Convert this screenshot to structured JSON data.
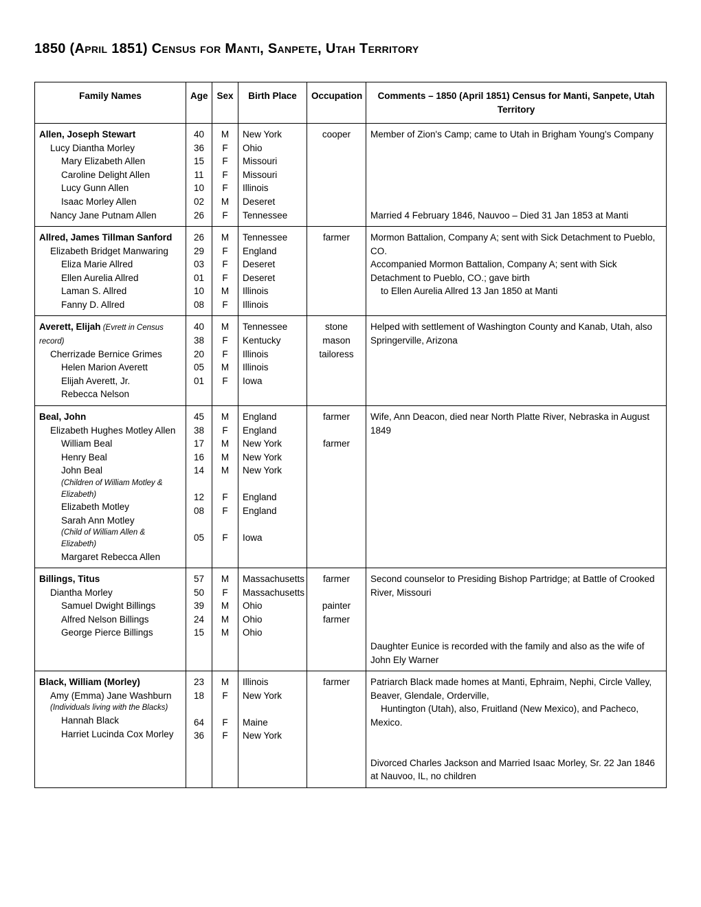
{
  "title": "1850 (April 1851) Census for Manti, Sanpete, Utah Territory",
  "columns": {
    "names": "Family Names",
    "age": "Age",
    "sex": "Sex",
    "birth": "Birth Place",
    "occ": "Occupation",
    "comm": "Comments – 1850 (April 1851) Census for Manti, Sanpete, Utah Territory"
  },
  "families": [
    {
      "members": [
        {
          "name": "Allen, Joseph Stewart",
          "age": "40",
          "sex": "M",
          "birth": "New York",
          "occ": "cooper",
          "indent": 0,
          "bold": true
        },
        {
          "name": "Lucy Diantha Morley",
          "age": "36",
          "sex": "F",
          "birth": "Ohio",
          "occ": "",
          "indent": 1
        },
        {
          "name": "Mary Elizabeth Allen",
          "age": "15",
          "sex": "F",
          "birth": "Missouri",
          "occ": "",
          "indent": 2
        },
        {
          "name": "Caroline Delight Allen",
          "age": "11",
          "sex": "F",
          "birth": "Missouri",
          "occ": "",
          "indent": 2
        },
        {
          "name": "Lucy Gunn Allen",
          "age": "10",
          "sex": "F",
          "birth": "Illinois",
          "occ": "",
          "indent": 2
        },
        {
          "name": "Isaac Morley Allen",
          "age": "02",
          "sex": "M",
          "birth": "Deseret",
          "occ": "",
          "indent": 2
        },
        {
          "name": "Nancy Jane Putnam Allen",
          "age": "26",
          "sex": "F",
          "birth": "Tennessee",
          "occ": "",
          "indent": 1
        }
      ],
      "comment_top": "Member of Zion's Camp; came to Utah in Brigham Young's Company",
      "comment_bottom": "Married 4 February 1846, Nauvoo – Died 31 Jan 1853 at Manti"
    },
    {
      "members": [
        {
          "name": "Allred, James Tillman Sanford",
          "age": "26",
          "sex": "M",
          "birth": "Tennessee",
          "occ": "farmer",
          "indent": 0,
          "bold": true
        },
        {
          "name": "Elizabeth Bridget Manwaring",
          "age": "29",
          "sex": "F",
          "birth": "England",
          "occ": "",
          "indent": 1
        },
        {
          "name": "Eliza Marie Allred",
          "age": "03",
          "sex": "F",
          "birth": "Deseret",
          "occ": "",
          "indent": 2
        },
        {
          "name": "Ellen Aurelia Allred",
          "age": "01",
          "sex": "F",
          "birth": "Deseret",
          "occ": "",
          "indent": 2
        },
        {
          "name": "Laman S. Allred",
          "age": "10",
          "sex": "M",
          "birth": "Illinois",
          "occ": "",
          "indent": 2
        },
        {
          "name": "Fanny D. Allred",
          "age": "08",
          "sex": "F",
          "birth": "Illinois",
          "occ": "",
          "indent": 2
        }
      ],
      "comment_lines": [
        "Mormon Battalion, Company A; sent with Sick Detachment to Pueblo, CO.",
        "Accompanied Mormon Battalion, Company A; sent with Sick Detachment to Pueblo, CO.; gave birth",
        "    to Ellen Aurelia Allred 13 Jan 1850 at Manti"
      ]
    },
    {
      "members": [
        {
          "name": "Averett, Elijah",
          "note": "(Evrett in Census record)",
          "age": "40",
          "sex": "M",
          "birth": "Tennessee",
          "occ": "stone mason",
          "indent": 0,
          "bold": true
        },
        {
          "name": "Cherrizade Bernice Grimes",
          "age": "38",
          "sex": "F",
          "birth": "Kentucky",
          "occ": "tailoress",
          "indent": 1
        },
        {
          "name": "Helen Marion Averett",
          "age": "20",
          "sex": "F",
          "birth": "Illinois",
          "occ": "",
          "indent": 2
        },
        {
          "name": "Elijah Averett, Jr.",
          "age": "05",
          "sex": "M",
          "birth": "Illinois",
          "occ": "",
          "indent": 2
        },
        {
          "name": "Rebecca Nelson",
          "age": "01",
          "sex": "F",
          "birth": "Iowa",
          "occ": "",
          "indent": 2
        }
      ],
      "comment_top": "Helped with settlement of Washington County and Kanab, Utah, also Springerville, Arizona"
    },
    {
      "members": [
        {
          "name": "Beal, John",
          "age": "45",
          "sex": "M",
          "birth": "England",
          "occ": "farmer",
          "indent": 0,
          "bold": true
        },
        {
          "name": "Elizabeth Hughes Motley Allen",
          "age": "38",
          "sex": "F",
          "birth": "England",
          "occ": "",
          "indent": 1
        },
        {
          "name": "William Beal",
          "age": "17",
          "sex": "M",
          "birth": "New York",
          "occ": "farmer",
          "indent": 2
        },
        {
          "name": "Henry Beal",
          "age": "16",
          "sex": "M",
          "birth": "New York",
          "occ": "",
          "indent": 2
        },
        {
          "name": "John Beal",
          "age": "14",
          "sex": "M",
          "birth": "New York",
          "occ": "",
          "indent": 2
        },
        {
          "name": "(Children of William Motley & Elizabeth)",
          "age": "",
          "sex": "",
          "birth": "",
          "occ": "",
          "indent": 2,
          "italic": true,
          "small": true
        },
        {
          "name": "Elizabeth Motley",
          "age": "12",
          "sex": "F",
          "birth": "England",
          "occ": "",
          "indent": 2
        },
        {
          "name": "Sarah Ann Motley",
          "age": "08",
          "sex": "F",
          "birth": "England",
          "occ": "",
          "indent": 2
        },
        {
          "name": "(Child of William Allen & Elizabeth)",
          "age": "",
          "sex": "",
          "birth": "",
          "occ": "",
          "indent": 2,
          "italic": true,
          "small": true
        },
        {
          "name": "Margaret Rebecca Allen",
          "age": "05",
          "sex": "F",
          "birth": "Iowa",
          "occ": "",
          "indent": 2
        }
      ],
      "comment_top": "Wife, Ann Deacon, died near North Platte River, Nebraska in August 1849"
    },
    {
      "members": [
        {
          "name": "Billings, Titus",
          "age": "57",
          "sex": "M",
          "birth": "Massachusetts",
          "occ": "farmer",
          "indent": 0,
          "bold": true
        },
        {
          "name": "Diantha Morley",
          "age": "50",
          "sex": "F",
          "birth": "Massachusetts",
          "occ": "",
          "indent": 1
        },
        {
          "name": "Samuel Dwight Billings",
          "age": "39",
          "sex": "M",
          "birth": "Ohio",
          "occ": "painter",
          "indent": 2
        },
        {
          "name": "Alfred Nelson Billings",
          "age": "24",
          "sex": "M",
          "birth": "Ohio",
          "occ": "farmer",
          "indent": 2
        },
        {
          "name": "George Pierce Billings",
          "age": "15",
          "sex": "M",
          "birth": "Ohio",
          "occ": "",
          "indent": 2
        }
      ],
      "comment_top": "Second counselor to Presiding Bishop Partridge; at Battle of Crooked River, Missouri",
      "comment_bottom": "Daughter Eunice is recorded with the family and also as the wife of John Ely Warner"
    },
    {
      "members": [
        {
          "name": "Black, William (Morley)",
          "age": "23",
          "sex": "M",
          "birth": "Illinois",
          "occ": "farmer",
          "indent": 0,
          "bold": true
        },
        {
          "name": "Amy (Emma) Jane Washburn",
          "age": "18",
          "sex": "F",
          "birth": "New York",
          "occ": "",
          "indent": 1
        },
        {
          "name": "(Individuals living with the Blacks)",
          "age": "",
          "sex": "",
          "birth": "",
          "occ": "",
          "indent": 1,
          "italic": true,
          "small": true
        },
        {
          "name": "Hannah Black",
          "age": "64",
          "sex": "F",
          "birth": "Maine",
          "occ": "",
          "indent": 2
        },
        {
          "name": "Harriet Lucinda Cox Morley",
          "age": "36",
          "sex": "F",
          "birth": "New York",
          "occ": "",
          "indent": 2
        }
      ],
      "comment_lines_top": [
        "Patriarch Black made homes at Manti, Ephraim, Nephi, Circle Valley, Beaver, Glendale, Orderville,",
        "    Huntington (Utah), also, Fruitland (New Mexico), and Pacheco, Mexico."
      ],
      "comment_bottom": "Divorced Charles Jackson and Married Isaac Morley, Sr. 22 Jan 1846 at Nauvoo, IL, no children"
    }
  ]
}
